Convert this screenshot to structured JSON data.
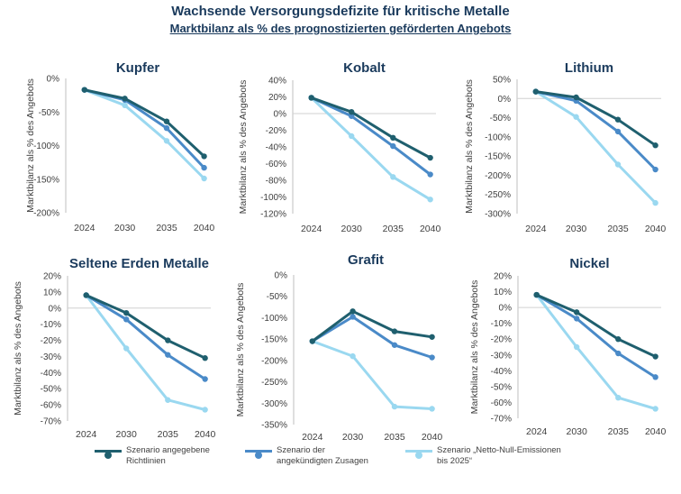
{
  "title": "Wachsende Versorgungsdefizite für kritische Metalle",
  "subtitle": "Marktbilanz als % des prognostizierten geförderten Angebots",
  "series_colors": [
    "#1f5f6e",
    "#4a8ac8",
    "#9ad8f0"
  ],
  "legend": [
    {
      "line1": "Szenario angegebene",
      "line2": "Richtlinien"
    },
    {
      "line1": "Szenario der",
      "line2": "angekündigten Zusagen"
    },
    {
      "line1": "Szenario „Netto-Null-Emissionen",
      "line2": "bis 2025“"
    }
  ],
  "chart_data": [
    {
      "type": "line",
      "title": "Kupfer",
      "ylabel": "Marktbilanz als % des Angebots",
      "categories": [
        "2024",
        "2030",
        "2035",
        "2040"
      ],
      "ylim": [
        -200,
        0
      ],
      "yticks": [
        0,
        -50,
        -100,
        -150,
        -200
      ],
      "yfmt": "%",
      "series": [
        {
          "name": "Szenario angegebene Richtlinien",
          "values": [
            -17,
            -30,
            -64,
            -116
          ]
        },
        {
          "name": "Szenario der angekündigten Zusagen",
          "values": [
            -17,
            -32,
            -74,
            -133
          ]
        },
        {
          "name": "Szenario „Netto-Null-Emissionen bis 2025“",
          "values": [
            -17,
            -40,
            -93,
            -149
          ]
        }
      ]
    },
    {
      "type": "line",
      "title": "Kobalt",
      "ylabel": "Marktbilanz als % des Angebots",
      "categories": [
        "2024",
        "2030",
        "2035",
        "2040"
      ],
      "ylim": [
        -120,
        40
      ],
      "yticks": [
        40,
        20,
        0,
        -20,
        -40,
        -60,
        -80,
        -100,
        -120
      ],
      "yfmt": "%",
      "series": [
        {
          "name": "Szenario angegebene Richtlinien",
          "values": [
            19,
            2,
            -29,
            -53
          ]
        },
        {
          "name": "Szenario der angekündigten Zusagen",
          "values": [
            19,
            -3,
            -39,
            -73
          ]
        },
        {
          "name": "Szenario „Netto-Null-Emissionen bis 2025“",
          "values": [
            19,
            -27,
            -76,
            -103
          ]
        }
      ]
    },
    {
      "type": "line",
      "title": "Lithium",
      "ylabel": "Marktbilanz als % des Angebots",
      "categories": [
        "2024",
        "2030",
        "2035",
        "2040"
      ],
      "ylim": [
        -300,
        50
      ],
      "yticks": [
        50,
        0,
        -50,
        -100,
        -150,
        -200,
        -250,
        -300
      ],
      "yfmt": "%",
      "series": [
        {
          "name": "Szenario angegebene Richtlinien",
          "values": [
            18,
            3,
            -55,
            -122
          ]
        },
        {
          "name": "Szenario der angekündigten Zusagen",
          "values": [
            18,
            -6,
            -86,
            -185
          ]
        },
        {
          "name": "Szenario „Netto-Null-Emissionen bis 2025“",
          "values": [
            18,
            -48,
            -172,
            -272
          ]
        }
      ]
    },
    {
      "type": "line",
      "title": "Seltene Erden Metalle",
      "ylabel": "Marktbilanz als % des Angebots",
      "categories": [
        "2024",
        "2030",
        "2035",
        "2040"
      ],
      "ylim": [
        -70,
        20
      ],
      "yticks": [
        20,
        10,
        0,
        -10,
        -20,
        -30,
        -40,
        -50,
        -60,
        -70
      ],
      "yfmt": "%",
      "series": [
        {
          "name": "Szenario angegebene Richtlinien",
          "values": [
            8,
            -3,
            -20,
            -31
          ]
        },
        {
          "name": "Szenario der angekündigten Zusagen",
          "values": [
            8,
            -7,
            -29,
            -44
          ]
        },
        {
          "name": "Szenario „Netto-Null-Emissionen bis 2025“",
          "values": [
            8,
            -25,
            -57,
            -63
          ]
        }
      ]
    },
    {
      "type": "line",
      "title": "Grafit",
      "ylabel": "Marktbilanz als % des Angebots",
      "categories": [
        "2024",
        "2030",
        "2035",
        "2040"
      ],
      "ylim": [
        -350,
        0
      ],
      "yticks": [
        0,
        -50,
        -100,
        -150,
        -200,
        -250,
        -300,
        -350
      ],
      "yfmt": "%",
      "series": [
        {
          "name": "Szenario angegebene Richtlinien",
          "values": [
            -155,
            -85,
            -132,
            -145
          ]
        },
        {
          "name": "Szenario der angekündigten Zusagen",
          "values": [
            -155,
            -98,
            -164,
            -193
          ]
        },
        {
          "name": "Szenario „Netto-Null-Emissionen bis 2025“",
          "values": [
            -155,
            -190,
            -308,
            -313
          ]
        }
      ]
    },
    {
      "type": "line",
      "title": "Nickel",
      "ylabel": "Marktbilanz als % des Angebots",
      "categories": [
        "2024",
        "2030",
        "2035",
        "2040"
      ],
      "ylim": [
        -70,
        20
      ],
      "yticks": [
        20,
        10,
        0,
        -10,
        -20,
        -30,
        -40,
        -50,
        -60,
        -70
      ],
      "yfmt": "%",
      "series": [
        {
          "name": "Szenario angegebene Richtlinien",
          "values": [
            8,
            -3,
            -20,
            -31
          ]
        },
        {
          "name": "Szenario der angekündigten Zusagen",
          "values": [
            8,
            -7,
            -29,
            -44
          ]
        },
        {
          "name": "Szenario „Netto-Null-Emissionen bis 2025“",
          "values": [
            8,
            -25,
            -57,
            -64
          ]
        }
      ]
    }
  ]
}
